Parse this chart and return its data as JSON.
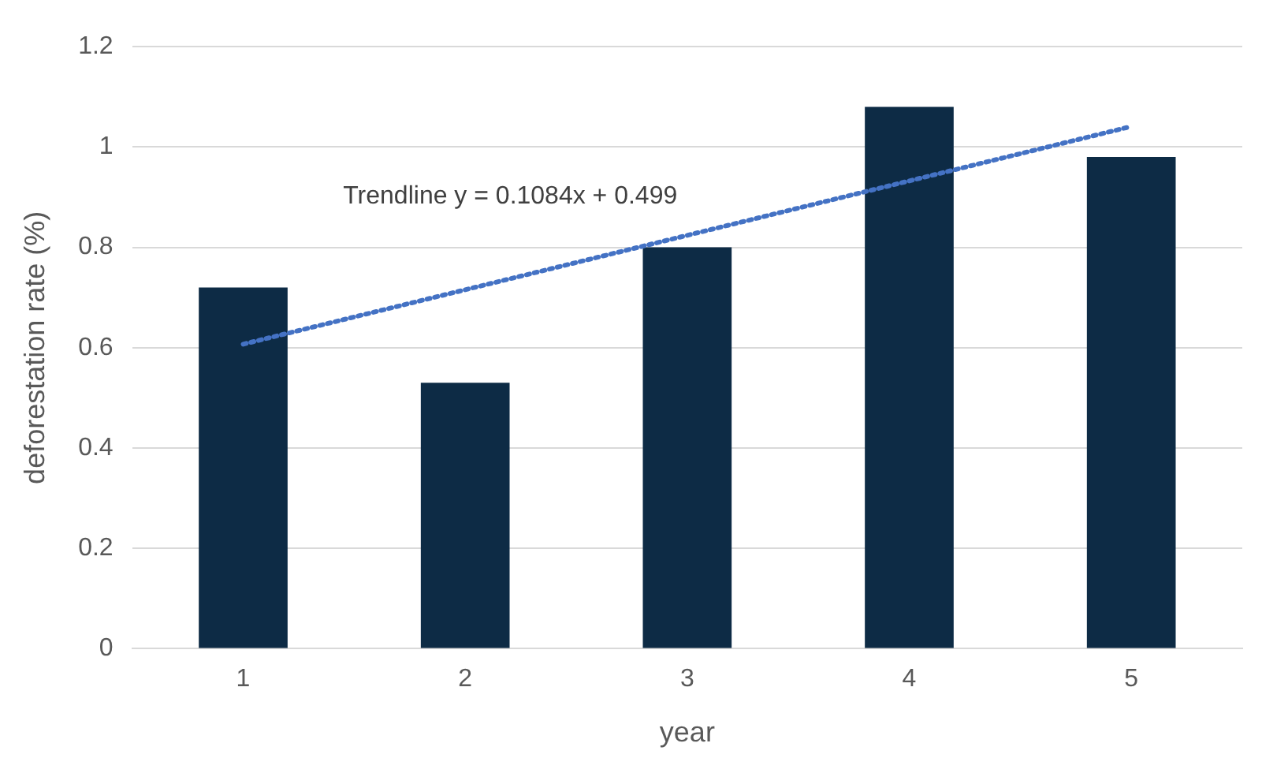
{
  "chart_data": {
    "type": "bar",
    "xlabel": "year",
    "ylabel": "deforestation rate (%)",
    "categories": [
      "1",
      "2",
      "3",
      "4",
      "5"
    ],
    "series": [
      {
        "color": "#0d2b45",
        "values": [
          0.72,
          0.53,
          0.8,
          1.08,
          0.98
        ]
      },
      {
        "type": "line",
        "color": "#4472c4",
        "line_style": "dotted",
        "marker": "none",
        "x": [
          "1",
          "5"
        ],
        "values": [
          0.607,
          1.041
        ]
      }
    ],
    "annotations": [
      "Trendline y = 0.1084x + 0.499"
    ],
    "ylim": [
      0,
      1.2
    ],
    "yticks": [
      0,
      0.2,
      0.4,
      0.6,
      0.8,
      1,
      1.2
    ],
    "grid": "y",
    "legend": false
  }
}
